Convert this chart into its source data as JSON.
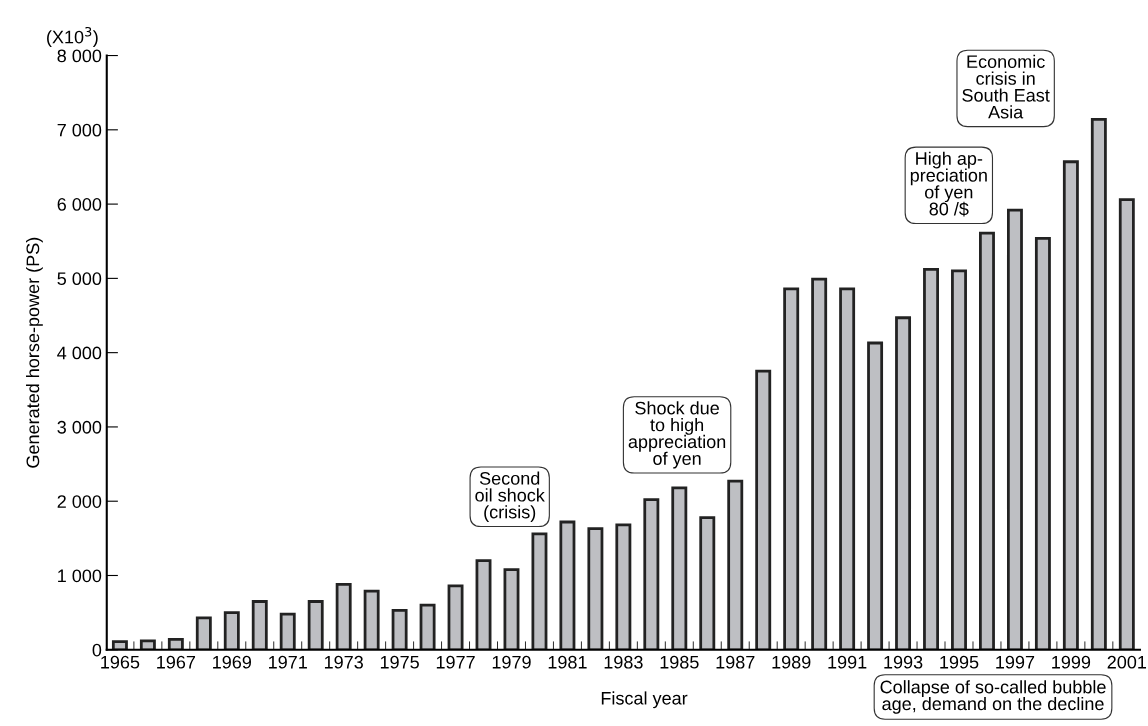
{
  "chart_data": {
    "type": "bar",
    "xlabel": "Fiscal year",
    "ylabel": "Generated horse-power (PS)",
    "categories": [
      "1965",
      null,
      "1967",
      null,
      "1969",
      null,
      "1971",
      null,
      "1973",
      null,
      "1975",
      null,
      "1977",
      null,
      "1979",
      null,
      "1981",
      null,
      "1983",
      null,
      "1985",
      null,
      "1987",
      null,
      "1989",
      null,
      "1991",
      null,
      "1993",
      null,
      "1995",
      null,
      "1997",
      null,
      "1999",
      null,
      "2001"
    ],
    "values": [
      110,
      120,
      140,
      430,
      500,
      650,
      480,
      650,
      880,
      790,
      530,
      600,
      860,
      1200,
      1080,
      1560,
      1720,
      1630,
      1680,
      2020,
      2180,
      1780,
      2270,
      3750,
      4860,
      4990,
      4860,
      4130,
      4470,
      5120,
      5100,
      5610,
      5920,
      5540,
      6570,
      7140,
      6060
    ],
    "color": "#bebfc3",
    "ylim": [
      0,
      8000
    ],
    "yticks": [
      0,
      {
        "value": 1000,
        "label": "1 000"
      },
      {
        "value": 2000,
        "label": "2 000"
      },
      {
        "value": 3000,
        "label": "3 000"
      },
      {
        "value": 4000,
        "label": "4 000"
      },
      {
        "value": 5000,
        "label": "5 000"
      },
      {
        "value": 6000,
        "label": "6 000"
      },
      {
        "value": 7000,
        "label": "7 000"
      },
      {
        "value": 8000,
        "label": "8 000"
      }
    ],
    "grid": false,
    "legend": false,
    "annotations": [
      "(X10$^{3}$)",
      "Second\noil shock\n(crisis)",
      "Shock due\nto high\nappreciation\nof yen",
      "High ap-\npreciation\nof yen\n80 /$",
      "Economic\ncrisis in\nSouth East\nAsia",
      "Collapse of so-called bubble\nage, demand on the decline"
    ]
  }
}
